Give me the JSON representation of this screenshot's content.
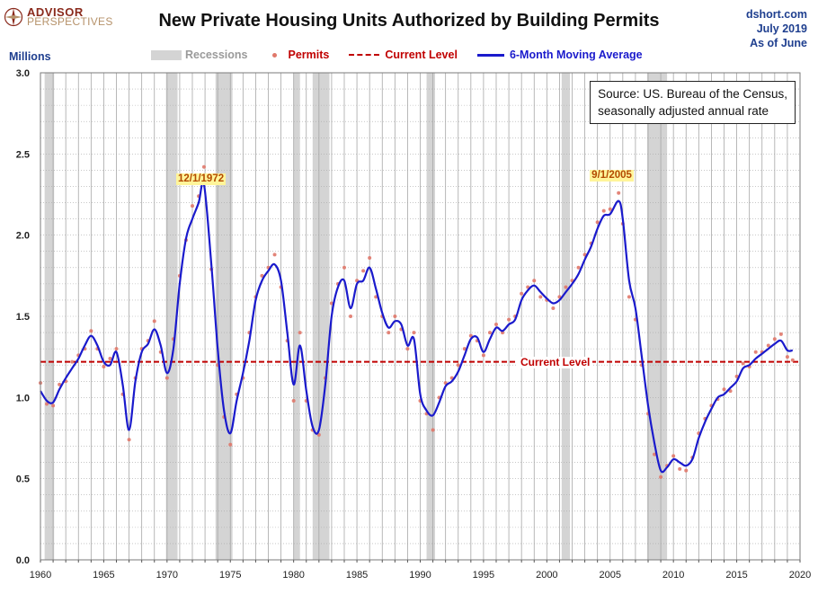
{
  "header": {
    "logo_line1": "ADVISOR",
    "logo_line2": "PERSPECTIVES",
    "title": "New Private Housing Units Authorized by Building Permits",
    "site": "dshort.com",
    "date": "July 2019",
    "as_of": "As of June"
  },
  "note": {
    "line1": "Source: US. Bureau of the Census,",
    "line2": "seasonally adjusted annual rate"
  },
  "colors": {
    "recession": "#d4d4d4",
    "permits": "#e0786a",
    "current_level": "#c00000",
    "moving_average": "#1a1acc"
  },
  "chart_data": {
    "type": "line",
    "title": "New Private Housing Units Authorized by Building Permits",
    "ylabel": "Millions",
    "xlabel": "",
    "xlim": [
      1960,
      2020
    ],
    "ylim": [
      0.0,
      3.0
    ],
    "x_ticks": [
      "1960",
      "1965",
      "1970",
      "1975",
      "1980",
      "1985",
      "1990",
      "1995",
      "2000",
      "2005",
      "2010",
      "2015",
      "2020"
    ],
    "y_ticks": [
      "0.0",
      "0.5",
      "1.0",
      "1.5",
      "2.0",
      "2.5",
      "3.0"
    ],
    "grid": true,
    "legend_position": "top",
    "legend": [
      "Recessions",
      "Permits",
      "Current Level",
      "6-Month Moving Average"
    ],
    "recessions": [
      [
        1960.33,
        1961.08
      ],
      [
        1969.92,
        1970.83
      ],
      [
        1973.83,
        1975.17
      ],
      [
        1980.0,
        1980.5
      ],
      [
        1981.5,
        1982.83
      ],
      [
        1990.5,
        1991.17
      ],
      [
        2001.17,
        2001.83
      ],
      [
        2007.92,
        2009.5
      ]
    ],
    "current_level": {
      "value": 1.22,
      "label": "Current Level"
    },
    "annotations": [
      {
        "label": "12/1/1972",
        "x": 1972.92,
        "y": 2.3
      },
      {
        "label": "9/1/2005",
        "x": 2005.67,
        "y": 2.25
      }
    ],
    "series": [
      {
        "name": "6-Month Moving Average",
        "x": [
          1960.0,
          1960.5,
          1961.0,
          1961.5,
          1962.0,
          1962.5,
          1963.0,
          1963.5,
          1964.0,
          1964.5,
          1965.0,
          1965.5,
          1966.0,
          1966.5,
          1967.0,
          1967.5,
          1968.0,
          1968.5,
          1969.0,
          1969.5,
          1970.0,
          1970.5,
          1971.0,
          1971.5,
          1972.0,
          1972.5,
          1972.92,
          1973.5,
          1974.0,
          1974.5,
          1975.0,
          1975.5,
          1976.0,
          1976.5,
          1977.0,
          1977.5,
          1978.0,
          1978.5,
          1979.0,
          1979.5,
          1980.0,
          1980.5,
          1981.0,
          1981.5,
          1982.0,
          1982.5,
          1983.0,
          1983.5,
          1984.0,
          1984.5,
          1985.0,
          1985.5,
          1986.0,
          1986.5,
          1987.0,
          1987.5,
          1988.0,
          1988.5,
          1989.0,
          1989.5,
          1990.0,
          1990.5,
          1991.0,
          1991.5,
          1992.0,
          1992.5,
          1993.0,
          1993.5,
          1994.0,
          1994.5,
          1995.0,
          1995.5,
          1996.0,
          1996.5,
          1997.0,
          1997.5,
          1998.0,
          1998.5,
          1999.0,
          1999.5,
          2000.0,
          2000.5,
          2001.0,
          2001.5,
          2002.0,
          2002.5,
          2003.0,
          2003.5,
          2004.0,
          2004.5,
          2005.0,
          2005.67,
          2006.0,
          2006.5,
          2007.0,
          2007.5,
          2008.0,
          2008.5,
          2009.0,
          2009.5,
          2010.0,
          2010.5,
          2011.0,
          2011.5,
          2012.0,
          2012.5,
          2013.0,
          2013.5,
          2014.0,
          2014.5,
          2015.0,
          2015.5,
          2016.0,
          2016.5,
          2017.0,
          2017.5,
          2018.0,
          2018.5,
          2019.0,
          2019.42
        ],
        "values": [
          1.04,
          0.98,
          0.97,
          1.05,
          1.12,
          1.18,
          1.24,
          1.32,
          1.38,
          1.32,
          1.22,
          1.2,
          1.28,
          1.08,
          0.8,
          1.1,
          1.28,
          1.33,
          1.42,
          1.32,
          1.15,
          1.3,
          1.7,
          1.98,
          2.1,
          2.2,
          2.31,
          1.82,
          1.3,
          0.92,
          0.78,
          0.98,
          1.15,
          1.35,
          1.6,
          1.72,
          1.78,
          1.82,
          1.72,
          1.4,
          1.08,
          1.32,
          1.04,
          0.82,
          0.8,
          1.08,
          1.5,
          1.68,
          1.72,
          1.55,
          1.7,
          1.72,
          1.8,
          1.67,
          1.52,
          1.43,
          1.47,
          1.45,
          1.32,
          1.36,
          1.02,
          0.92,
          0.89,
          0.97,
          1.07,
          1.1,
          1.16,
          1.26,
          1.36,
          1.37,
          1.28,
          1.36,
          1.43,
          1.41,
          1.45,
          1.48,
          1.6,
          1.66,
          1.69,
          1.65,
          1.61,
          1.58,
          1.6,
          1.65,
          1.7,
          1.76,
          1.85,
          1.93,
          2.04,
          2.12,
          2.13,
          2.21,
          2.1,
          1.72,
          1.55,
          1.25,
          0.95,
          0.72,
          0.55,
          0.57,
          0.62,
          0.6,
          0.58,
          0.62,
          0.75,
          0.85,
          0.93,
          1.0,
          1.02,
          1.06,
          1.1,
          1.18,
          1.2,
          1.24,
          1.27,
          1.3,
          1.33,
          1.35,
          1.29,
          1.29
        ]
      },
      {
        "name": "Permits",
        "x": [
          1960.0,
          1960.5,
          1961.0,
          1961.5,
          1962.0,
          1962.5,
          1963.0,
          1963.5,
          1964.0,
          1964.5,
          1965.0,
          1965.5,
          1966.0,
          1966.5,
          1967.0,
          1967.5,
          1968.0,
          1968.5,
          1969.0,
          1969.5,
          1970.0,
          1970.5,
          1971.0,
          1971.5,
          1972.0,
          1972.5,
          1972.92,
          1973.5,
          1974.0,
          1974.5,
          1975.0,
          1975.5,
          1976.0,
          1976.5,
          1977.0,
          1977.5,
          1978.0,
          1978.5,
          1979.0,
          1979.5,
          1980.0,
          1980.5,
          1981.0,
          1981.5,
          1982.0,
          1982.5,
          1983.0,
          1983.5,
          1984.0,
          1984.5,
          1985.0,
          1985.5,
          1986.0,
          1986.5,
          1987.0,
          1987.5,
          1988.0,
          1988.5,
          1989.0,
          1989.5,
          1990.0,
          1990.5,
          1991.0,
          1991.5,
          1992.0,
          1992.5,
          1993.0,
          1993.5,
          1994.0,
          1994.5,
          1995.0,
          1995.5,
          1996.0,
          1996.5,
          1997.0,
          1997.5,
          1998.0,
          1998.5,
          1999.0,
          1999.5,
          2000.0,
          2000.5,
          2001.0,
          2001.5,
          2002.0,
          2002.5,
          2003.0,
          2003.5,
          2004.0,
          2004.5,
          2005.0,
          2005.67,
          2006.0,
          2006.5,
          2007.0,
          2007.5,
          2008.0,
          2008.5,
          2009.0,
          2009.5,
          2010.0,
          2010.5,
          2011.0,
          2011.5,
          2012.0,
          2012.5,
          2013.0,
          2013.5,
          2014.0,
          2014.5,
          2015.0,
          2015.5,
          2016.0,
          2016.5,
          2017.0,
          2017.5,
          2018.0,
          2018.5,
          2019.0,
          2019.42
        ],
        "values": [
          1.09,
          0.96,
          0.95,
          1.08,
          1.1,
          1.22,
          1.26,
          1.3,
          1.41,
          1.3,
          1.19,
          1.24,
          1.3,
          1.02,
          0.74,
          1.12,
          1.3,
          1.35,
          1.47,
          1.28,
          1.12,
          1.36,
          1.75,
          1.97,
          2.18,
          2.24,
          2.42,
          1.79,
          1.2,
          0.88,
          0.71,
          1.02,
          1.12,
          1.4,
          1.62,
          1.75,
          1.8,
          1.88,
          1.68,
          1.35,
          0.98,
          1.4,
          0.98,
          0.8,
          0.77,
          1.12,
          1.58,
          1.7,
          1.8,
          1.5,
          1.72,
          1.78,
          1.86,
          1.62,
          1.5,
          1.4,
          1.5,
          1.42,
          1.3,
          1.4,
          0.98,
          0.9,
          0.8,
          1.0,
          1.09,
          1.12,
          1.2,
          1.3,
          1.38,
          1.35,
          1.26,
          1.4,
          1.45,
          1.4,
          1.48,
          1.5,
          1.64,
          1.68,
          1.72,
          1.62,
          1.6,
          1.55,
          1.62,
          1.68,
          1.72,
          1.8,
          1.88,
          1.95,
          2.08,
          2.15,
          2.16,
          2.26,
          2.07,
          1.62,
          1.48,
          1.2,
          0.9,
          0.65,
          0.51,
          0.58,
          0.64,
          0.56,
          0.55,
          0.63,
          0.78,
          0.87,
          0.95,
          0.99,
          1.05,
          1.04,
          1.13,
          1.21,
          1.19,
          1.28,
          1.28,
          1.32,
          1.36,
          1.39,
          1.25,
          1.23
        ]
      }
    ]
  }
}
